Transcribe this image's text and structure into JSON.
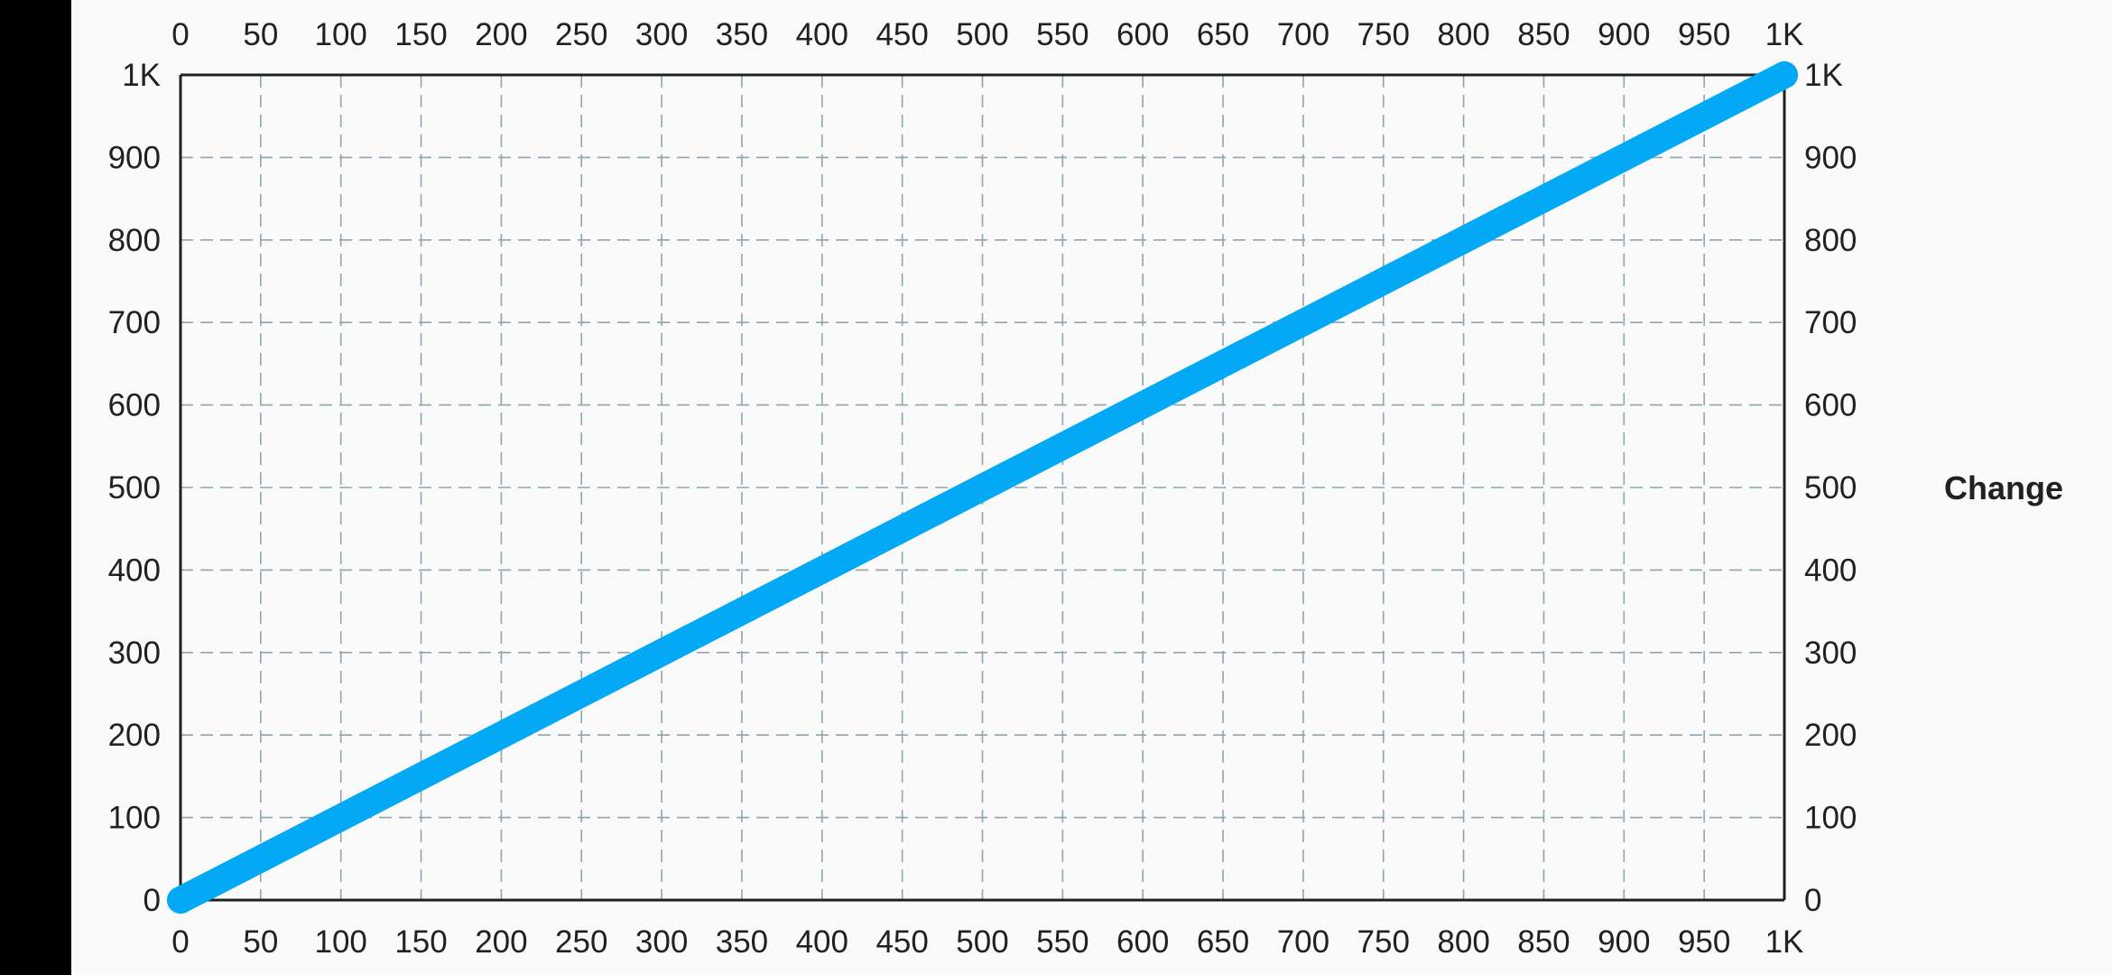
{
  "change_button": {
    "label": "Change"
  },
  "colors": {
    "line": "#03a9f4",
    "grid": "#90a4ae",
    "axis": "#212121",
    "background": "#fafafa",
    "bezel": "#000000"
  },
  "chart_data": {
    "type": "line",
    "title": "",
    "xlabel": "",
    "ylabel": "",
    "xlim": [
      0,
      1000
    ],
    "ylim": [
      0,
      1000
    ],
    "grid": true,
    "grid_style": "dashed",
    "x_tick_values": [
      0,
      50,
      100,
      150,
      200,
      250,
      300,
      350,
      400,
      450,
      500,
      550,
      600,
      650,
      700,
      750,
      800,
      850,
      900,
      950,
      1000
    ],
    "x_tick_labels": [
      "0",
      "50",
      "100",
      "150",
      "200",
      "250",
      "300",
      "350",
      "400",
      "450",
      "500",
      "550",
      "600",
      "650",
      "700",
      "750",
      "800",
      "850",
      "900",
      "950",
      "1K"
    ],
    "y_tick_values": [
      0,
      100,
      200,
      300,
      400,
      500,
      600,
      700,
      800,
      900,
      1000
    ],
    "y_tick_labels": [
      "0",
      "100",
      "200",
      "300",
      "400",
      "500",
      "600",
      "700",
      "800",
      "900",
      "1K"
    ],
    "axes_shown": [
      "top",
      "bottom",
      "left",
      "right"
    ],
    "series": [
      {
        "x": [
          0,
          1000
        ],
        "y": [
          0,
          1000
        ]
      }
    ]
  }
}
